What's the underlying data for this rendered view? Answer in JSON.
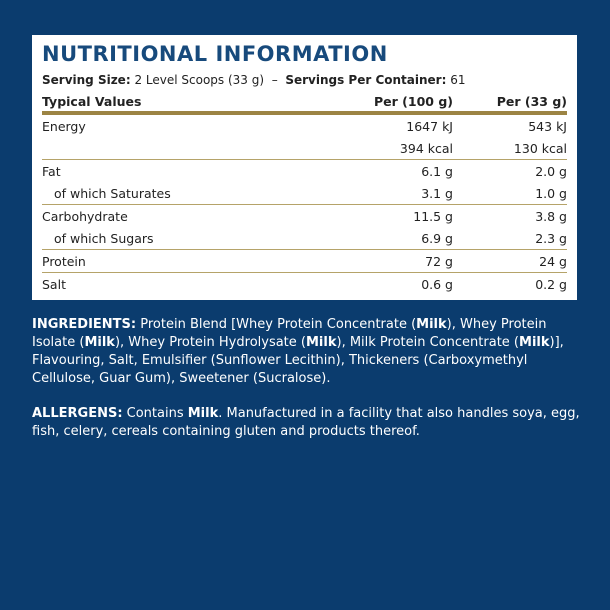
{
  "title": "NUTRITIONAL INFORMATION",
  "serving": {
    "size_label": "Serving Size:",
    "size_value": "2 Level Scoops (33 g)",
    "separator": "–",
    "servings_label": "Servings Per Container:",
    "servings_value": "61"
  },
  "table": {
    "headers": [
      "Typical Values",
      "Per (100 g)",
      "Per (33 g)"
    ],
    "rows": [
      {
        "name": "Energy",
        "per100": "1647 kJ",
        "per33": "543 kJ"
      },
      {
        "name": "",
        "per100": "394 kcal",
        "per33": "130 kcal"
      },
      {
        "name": "Fat",
        "per100": "6.1 g",
        "per33": "2.0 g"
      },
      {
        "name": "of which Saturates",
        "per100": "3.1 g",
        "per33": "1.0 g"
      },
      {
        "name": "Carbohydrate",
        "per100": "11.5 g",
        "per33": "3.8 g"
      },
      {
        "name": "of which Sugars",
        "per100": "6.9 g",
        "per33": "2.3 g"
      },
      {
        "name": "Protein",
        "per100": "72 g",
        "per33": "24 g"
      },
      {
        "name": "Salt",
        "per100": "0.6 g",
        "per33": "0.2 g"
      }
    ]
  },
  "ingredients": {
    "label": "INGREDIENTS:",
    "t1": " Protein Blend [Whey Protein Concentrate (",
    "b1": "Milk",
    "t2": "), Whey Protein Isolate (",
    "b2": "Milk",
    "t3": "), Whey Protein Hydrolysate (",
    "b3": "Milk",
    "t4": "), Milk Protein Concentrate (",
    "b4": "Milk",
    "t5": ")], Flavouring, Salt, Emulsifier (Sunflower Lecithin), Thickeners (Carboxymethyl Cellulose, Guar Gum), Sweetener (Sucralose)."
  },
  "allergens": {
    "label": "ALLERGENS:",
    "t1": " Contains ",
    "b1": "Milk",
    "t2": ". Manufactured in a facility that also handles soya, egg, fish, celery, cereals containing gluten and products thereof."
  },
  "colors": {
    "background": "#0b3c6e",
    "title": "#174a7c",
    "rule": "#9c8444"
  }
}
